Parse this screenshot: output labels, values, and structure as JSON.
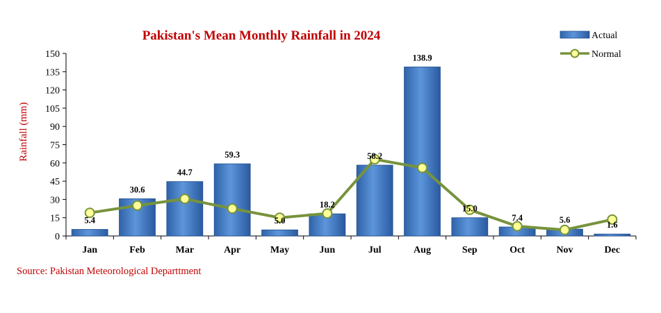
{
  "chart_data": {
    "type": "bar",
    "title": "Pakistan's Mean Monthly Rainfall in 2024",
    "xlabel": "",
    "ylabel": "Rainfall (mm)",
    "ylim": [
      0,
      150
    ],
    "yticks": [
      0,
      15,
      30,
      45,
      60,
      75,
      90,
      105,
      120,
      135,
      150
    ],
    "categories": [
      "Jan",
      "Feb",
      "Mar",
      "Apr",
      "May",
      "Jun",
      "Jul",
      "Aug",
      "Sep",
      "Oct",
      "Nov",
      "Dec"
    ],
    "series": [
      {
        "name": "Actual",
        "type": "bar",
        "values": [
          5.4,
          30.6,
          44.7,
          59.3,
          5.0,
          18.2,
          58.2,
          138.9,
          15.0,
          7.4,
          5.6,
          1.6
        ],
        "labels": [
          "5.4",
          "30.6",
          "44.7",
          "59.3",
          "5.0",
          "18.2",
          "58.2",
          "138.9",
          "15.0",
          "7.4",
          "5.6",
          "1.6"
        ]
      },
      {
        "name": "Normal",
        "type": "line",
        "values": [
          19.0,
          25.0,
          30.5,
          22.5,
          15.0,
          18.5,
          63.0,
          56.0,
          21.5,
          8.0,
          5.0,
          13.5
        ]
      }
    ],
    "grid": false,
    "legend_position": "top-right",
    "colors": {
      "bar": "#4a7fc8",
      "bar_dark": "#1f4e8f",
      "line": "#77933c",
      "marker_fill": "#ffff99",
      "title": "#c00000"
    }
  },
  "source": "Source: Pakistan Meteorological Departtment"
}
